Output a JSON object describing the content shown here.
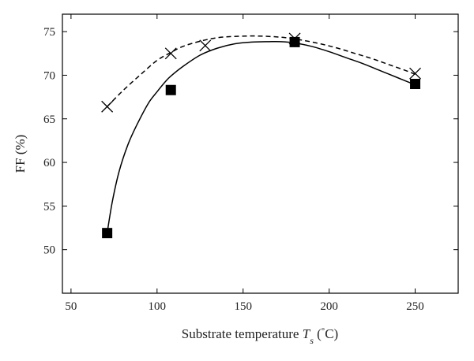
{
  "chart_data": {
    "type": "scatter",
    "title": "",
    "xlabel": {
      "prefix": "Substrate temperature ",
      "symbol": "T",
      "subscript": "s",
      "unit_open": " (",
      "degree": "°",
      "unit_close": "C)"
    },
    "ylabel": "FF (%)",
    "xlim": [
      45,
      275
    ],
    "ylim": [
      45,
      77
    ],
    "x_ticks": [
      50,
      100,
      150,
      200,
      250
    ],
    "y_ticks": [
      50,
      55,
      60,
      65,
      70,
      75
    ],
    "grid": false,
    "legend": "none",
    "series": [
      {
        "marker": "cross",
        "line_style": "dashed",
        "color": "#000000",
        "x": [
          71,
          108,
          128,
          180,
          250
        ],
        "y": [
          66.4,
          72.5,
          73.4,
          74.2,
          70.2
        ],
        "fit_x": [
          71,
          80,
          90,
          100,
          108,
          115,
          125,
          135,
          145,
          155,
          165,
          175,
          185,
          195,
          205,
          215,
          225,
          235,
          245,
          250
        ],
        "fit_y": [
          66.4,
          68.2,
          70.0,
          71.7,
          72.6,
          73.3,
          73.9,
          74.3,
          74.45,
          74.5,
          74.45,
          74.3,
          74.0,
          73.6,
          73.1,
          72.5,
          71.9,
          71.2,
          70.5,
          70.1
        ]
      },
      {
        "marker": "square",
        "line_style": "solid",
        "color": "#000000",
        "x": [
          71,
          108,
          180,
          250
        ],
        "y": [
          51.9,
          68.3,
          73.8,
          69.0
        ],
        "fit_x": [
          71,
          74,
          78,
          83,
          88,
          95,
          100,
          105,
          108,
          115,
          125,
          135,
          145,
          155,
          165,
          172,
          180,
          190,
          200,
          210,
          220,
          230,
          240,
          250
        ],
        "fit_y": [
          51.9,
          55.5,
          59.0,
          62.0,
          64.2,
          66.8,
          68.1,
          69.3,
          69.9,
          71.0,
          72.3,
          73.1,
          73.6,
          73.8,
          73.85,
          73.85,
          73.7,
          73.3,
          72.7,
          72.0,
          71.3,
          70.5,
          69.7,
          68.9
        ]
      }
    ]
  }
}
